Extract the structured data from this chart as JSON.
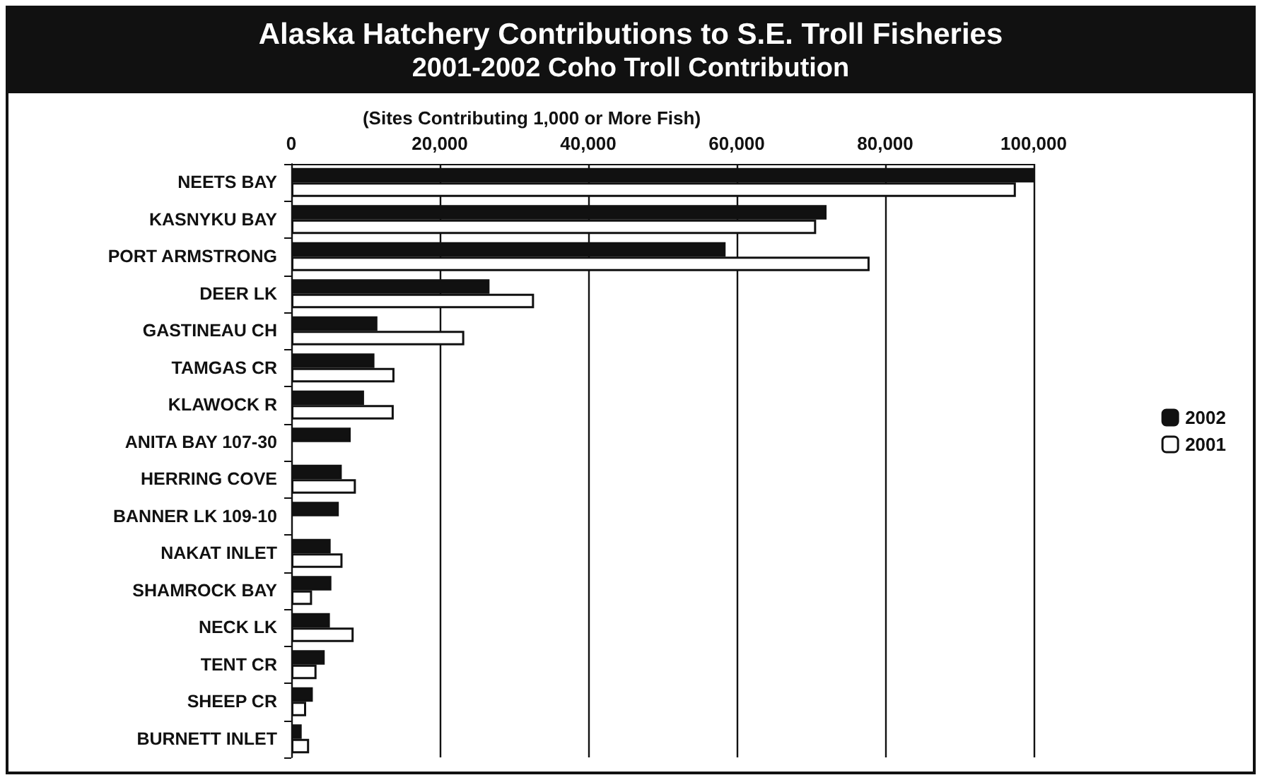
{
  "chart_data": {
    "type": "bar",
    "orientation": "horizontal",
    "title": "Alaska Hatchery Contributions to S.E. Troll Fisheries",
    "subtitle": "2001-2002 Coho Troll Contribution",
    "annotations": [
      "(Sites Contributing 1,000 or More Fish)"
    ],
    "categories": [
      "NEETS BAY",
      "KASNYKU BAY",
      "PORT ARMSTRONG",
      "DEER LK",
      "GASTINEAU CH",
      "TAMGAS CR",
      "KLAWOCK R",
      "ANITA BAY 107-30",
      "HERRING COVE",
      "BANNER LK 109-10",
      "NAKAT INLET",
      "SHAMROCK BAY",
      "NECK LK",
      "TENT CR",
      "SHEEP CR",
      "BURNETT INLET"
    ],
    "series": [
      {
        "name": "2002",
        "color": "#111111",
        "values": [
          100000,
          72100,
          58500,
          26700,
          11600,
          11200,
          9800,
          8000,
          6800,
          6400,
          5300,
          5400,
          5200,
          4500,
          2900,
          1400
        ]
      },
      {
        "name": "2001",
        "color": "#ffffff",
        "values": [
          97600,
          70700,
          77900,
          32700,
          23300,
          13900,
          13800,
          null,
          8700,
          null,
          6900,
          2800,
          8400,
          3400,
          2000,
          2400
        ]
      }
    ],
    "xlim": [
      0,
      100000
    ],
    "xticks": [
      {
        "value": 0,
        "label": "0"
      },
      {
        "value": 20000,
        "label": "20,000"
      },
      {
        "value": 40000,
        "label": "40,000"
      },
      {
        "value": 60000,
        "label": "60,000"
      },
      {
        "value": 80000,
        "label": "80,000"
      },
      {
        "value": 100000,
        "label": "100,000"
      }
    ],
    "grid": "x",
    "legend": "right"
  }
}
